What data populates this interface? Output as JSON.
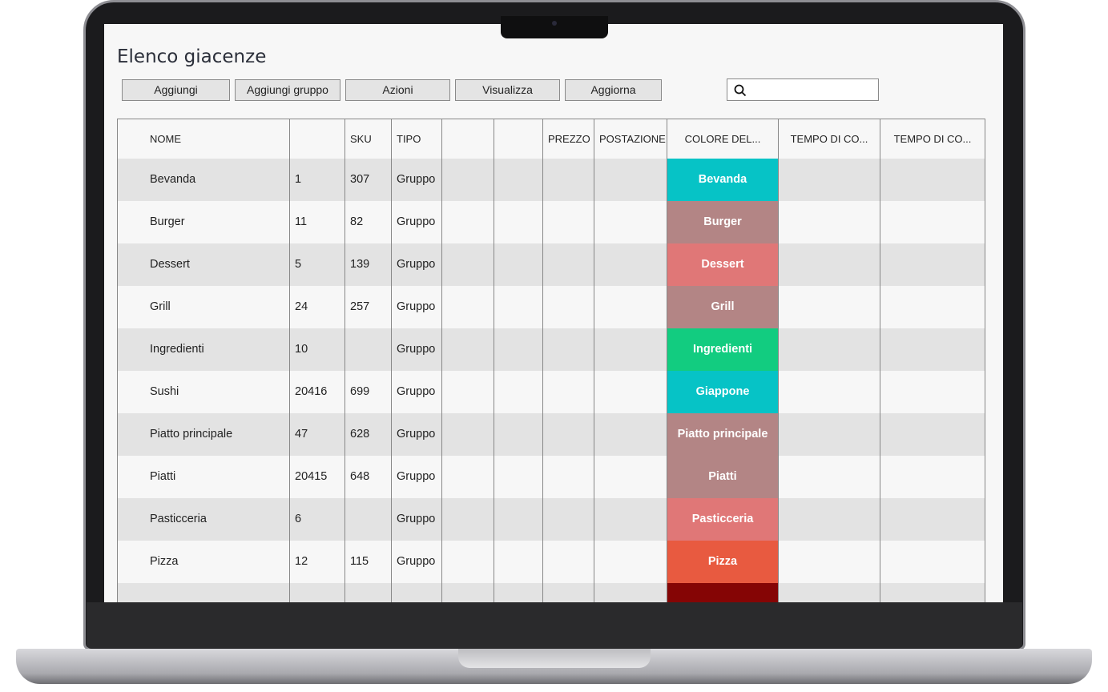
{
  "title": "Elenco giacenze",
  "toolbar": {
    "buttons": [
      "Aggiungi",
      "Aggiungi gruppo",
      "Azioni",
      "Visualizza",
      "Aggiorna"
    ],
    "search_placeholder": "",
    "search_icon": "search-icon"
  },
  "table": {
    "headers": [
      "NOME",
      "",
      "SKU",
      "TIPO",
      "",
      "",
      "PREZZO",
      "POSTAZIONE",
      "COLORE DEL...",
      "TEMPO DI CO...",
      "TEMPO DI CO..."
    ],
    "rows": [
      {
        "nome": "Bevanda",
        "id": "1",
        "sku": "307",
        "tipo": "Gruppo",
        "color_label": "Bevanda",
        "color": "#06c3c6"
      },
      {
        "nome": "Burger",
        "id": "11",
        "sku": "82",
        "tipo": "Gruppo",
        "color_label": "Burger",
        "color": "#b38585"
      },
      {
        "nome": "Dessert",
        "id": "5",
        "sku": "139",
        "tipo": "Gruppo",
        "color_label": "Dessert",
        "color": "#e07777"
      },
      {
        "nome": "Grill",
        "id": "24",
        "sku": "257",
        "tipo": "Gruppo",
        "color_label": "Grill",
        "color": "#b38585"
      },
      {
        "nome": "Ingredienti",
        "id": "10",
        "sku": "",
        "tipo": "Gruppo",
        "color_label": "Ingredienti",
        "color": "#12cc80"
      },
      {
        "nome": "Sushi",
        "id": "20416",
        "sku": "699",
        "tipo": "Gruppo",
        "color_label": "Giappone",
        "color": "#06c3c6"
      },
      {
        "nome": "Piatto principale",
        "id": "47",
        "sku": "628",
        "tipo": "Gruppo",
        "color_label": "Piatto principale",
        "color": "#b38585"
      },
      {
        "nome": "Piatti",
        "id": "20415",
        "sku": "648",
        "tipo": "Gruppo",
        "color_label": "Piatti",
        "color": "#b38585"
      },
      {
        "nome": "Pasticceria",
        "id": "6",
        "sku": "",
        "tipo": "Gruppo",
        "color_label": "Pasticceria",
        "color": "#e07777"
      },
      {
        "nome": "Pizza",
        "id": "12",
        "sku": "115",
        "tipo": "Gruppo",
        "color_label": "Pizza",
        "color": "#e85a40"
      },
      {
        "nome": "",
        "id": "",
        "sku": "",
        "tipo": "",
        "color_label": "",
        "color": "#850505"
      }
    ]
  }
}
